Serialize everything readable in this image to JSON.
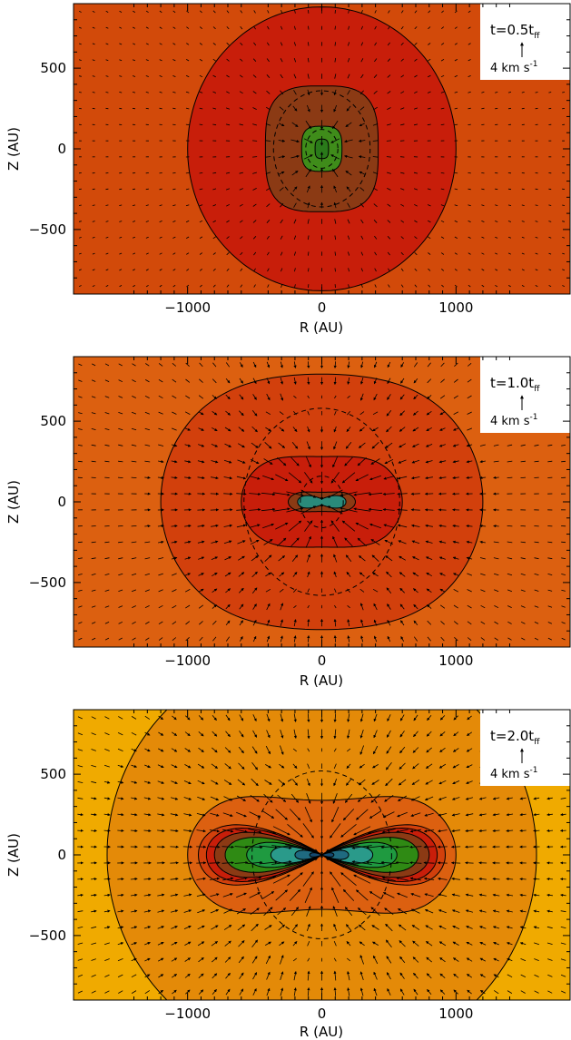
{
  "chart_data": [
    {
      "type": "contour",
      "panel_label": "t=0.5t",
      "panel_label_sub": "ff",
      "vector_scale": "4 km s",
      "vector_scale_exp": "-1",
      "xlabel": "R (AU)",
      "ylabel": "Z (AU)",
      "xlim": [
        -1850,
        1850
      ],
      "ylim": [
        -900,
        900
      ],
      "xticks": [
        -1000,
        0,
        1000
      ],
      "yticks": [
        -500,
        0,
        500
      ],
      "xtick_labels": [
        "−1000",
        "0",
        "1000"
      ],
      "ytick_labels": [
        "−500",
        "0",
        "500"
      ],
      "background_color": "#d24a0a",
      "solid_contours": [
        {
          "shape": "ellipse",
          "rx": 1000,
          "rz": 880,
          "fill": "#c81e0a"
        },
        {
          "shape": "superellipse",
          "rx": 420,
          "rz": 390,
          "fill": "#8b3a14"
        },
        {
          "shape": "superellipse",
          "rx": 150,
          "rz": 140,
          "fill": "#3f8c1a"
        },
        {
          "shape": "superellipse",
          "rx": 50,
          "rz": 60,
          "fill": "#2a7a1a"
        }
      ],
      "dashed_contours": [
        {
          "rx": 360,
          "rz": 360
        },
        {
          "rx": 120,
          "rz": 120
        }
      ],
      "arrow_strength": 0.6
    },
    {
      "type": "contour",
      "panel_label": "t=1.0t",
      "panel_label_sub": "ff",
      "vector_scale": "4 km s",
      "vector_scale_exp": "-1",
      "xlabel": "R (AU)",
      "ylabel": "Z (AU)",
      "xlim": [
        -1850,
        1850
      ],
      "ylim": [
        -900,
        900
      ],
      "xticks": [
        -1000,
        0,
        1000
      ],
      "yticks": [
        -500,
        0,
        500
      ],
      "xtick_labels": [
        "−1000",
        "0",
        "1000"
      ],
      "ytick_labels": [
        "−500",
        "0",
        "500"
      ],
      "background_color": "#dc6010",
      "solid_contours": [
        {
          "shape": "peanut",
          "rx": 1200,
          "rz": 880,
          "pinch": 0.1,
          "fill": "#d2400c"
        },
        {
          "shape": "peanut",
          "rx": 600,
          "rz": 360,
          "pinch": 0.22,
          "fill": "#c81e0a"
        },
        {
          "shape": "peanut",
          "rx": 250,
          "rz": 85,
          "pinch": 0.3,
          "fill": "#8b3a14"
        },
        {
          "shape": "lobes",
          "rx": 180,
          "rz": 65,
          "fill": "#2a8a7a"
        }
      ],
      "dashed_contours": [
        {
          "rx": 580,
          "rz": 580
        },
        {
          "rx": 160,
          "rz": 160
        }
      ],
      "arrow_strength": 1.0
    },
    {
      "type": "contour",
      "panel_label": "t=2.0t",
      "panel_label_sub": "ff",
      "vector_scale": "4 km s",
      "vector_scale_exp": "-1",
      "xlabel": "R (AU)",
      "ylabel": "Z (AU)",
      "xlim": [
        -1850,
        1850
      ],
      "ylim": [
        -900,
        900
      ],
      "xticks": [
        -1000,
        0,
        1000
      ],
      "yticks": [
        -500,
        0,
        500
      ],
      "xtick_labels": [
        "−1000",
        "0",
        "1000"
      ],
      "ytick_labels": [
        "−500",
        "0",
        "500"
      ],
      "background_color": "#f0aa00",
      "solid_contours": [
        {
          "shape": "ellipse",
          "rx": 1600,
          "rz": 1300,
          "fill": "#e48a08"
        },
        {
          "shape": "peanut",
          "rx": 1000,
          "rz": 520,
          "pinch": 0.35,
          "fill": "#dc6010"
        },
        {
          "shape": "bowtie",
          "rx": 920,
          "rz": 360,
          "fill": "#d2400c"
        },
        {
          "shape": "bowtie",
          "rx": 860,
          "rz": 320,
          "fill": "#c81e0a"
        },
        {
          "shape": "bowtie",
          "rx": 800,
          "rz": 270,
          "fill": "#8b3a14"
        },
        {
          "shape": "bowtie",
          "rx": 720,
          "rz": 210,
          "fill": "#2f8a14"
        },
        {
          "shape": "bowtie",
          "rx": 560,
          "rz": 150,
          "fill": "#1f9a40"
        },
        {
          "shape": "bowtie",
          "rx": 380,
          "rz": 100,
          "fill": "#2a9a8a"
        },
        {
          "shape": "bowtie",
          "rx": 200,
          "rz": 55,
          "fill": "#1f6a80"
        },
        {
          "shape": "bowtie",
          "rx": 90,
          "rz": 25,
          "fill": "#154a70"
        }
      ],
      "dashed_contours": [
        {
          "rx": 520,
          "rz": 520
        }
      ],
      "arrow_strength": 1.4
    }
  ]
}
